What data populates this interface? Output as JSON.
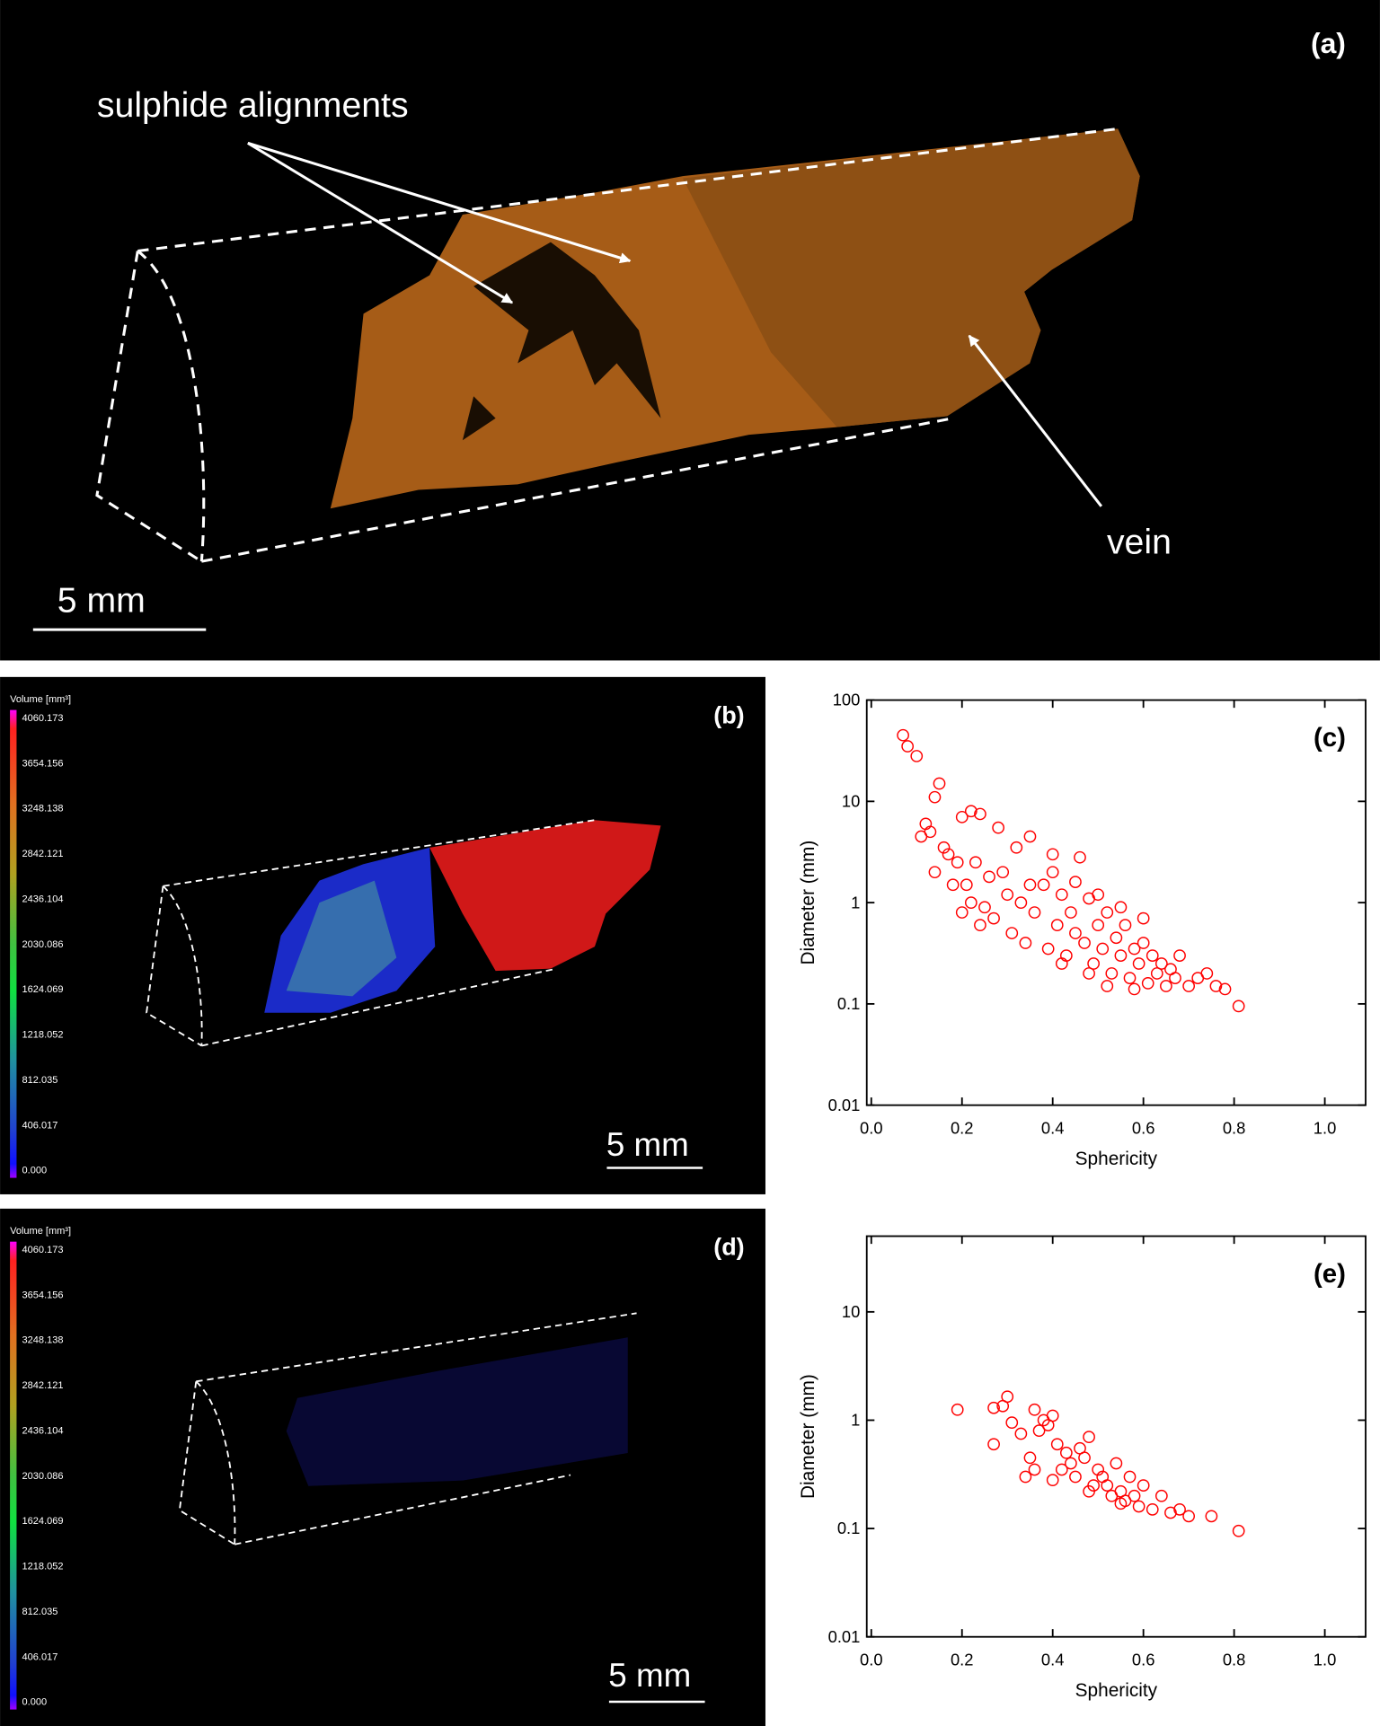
{
  "panels": {
    "a": {
      "label": "(a)",
      "annotation_alignments": "sulphide alignments",
      "annotation_vein": "vein",
      "scale": "5 mm"
    },
    "b": {
      "label": "(b)",
      "colorbar_title": "Volume [mm³]",
      "colorbar_labels": [
        "4060.173",
        "3654.156",
        "3248.138",
        "2842.121",
        "2436.104",
        "2030.086",
        "1624.069",
        "1218.052",
        "812.035",
        "406.017",
        "0.000"
      ],
      "scale": "5 mm"
    },
    "d": {
      "label": "(d)",
      "colorbar_title": "Volume [mm³]",
      "colorbar_labels": [
        "4060.173",
        "3654.156",
        "3248.138",
        "2842.121",
        "2436.104",
        "2030.086",
        "1624.069",
        "1218.052",
        "812.035",
        "406.017",
        "0.000"
      ],
      "scale": "5 mm"
    }
  },
  "chart_data": [
    {
      "type": "scatter",
      "panel_label": "(c)",
      "x_label": "Sphericity",
      "y_label": "Diameter (mm)",
      "yscale": "log",
      "color": "#ff0000",
      "marker": "open-circle",
      "xlim": [
        -0.01,
        1.09
      ],
      "ylim": [
        0.01,
        100
      ],
      "xticks": [
        {
          "value": 0,
          "label": "0.0"
        },
        0.2,
        0.4,
        0.6,
        0.8,
        {
          "value": 1,
          "label": "1.0"
        }
      ],
      "yticks": [
        0.01,
        0.1,
        1,
        10,
        100
      ],
      "x": [
        0.07,
        0.08,
        0.1,
        0.15,
        0.14,
        0.12,
        0.11,
        0.13,
        0.16,
        0.2,
        0.22,
        0.24,
        0.23,
        0.17,
        0.14,
        0.19,
        0.21,
        0.28,
        0.32,
        0.35,
        0.4,
        0.46,
        0.3,
        0.25,
        0.27,
        0.22,
        0.2,
        0.18,
        0.24,
        0.26,
        0.29,
        0.31,
        0.33,
        0.34,
        0.36,
        0.38,
        0.39,
        0.41,
        0.42,
        0.43,
        0.44,
        0.45,
        0.47,
        0.48,
        0.49,
        0.5,
        0.51,
        0.52,
        0.53,
        0.54,
        0.55,
        0.56,
        0.57,
        0.58,
        0.59,
        0.6,
        0.61,
        0.62,
        0.63,
        0.64,
        0.65,
        0.66,
        0.67,
        0.68,
        0.7,
        0.72,
        0.74,
        0.76,
        0.78,
        0.81,
        0.35,
        0.4,
        0.45,
        0.5,
        0.55,
        0.6,
        0.42,
        0.48,
        0.52,
        0.58
      ],
      "values": [
        45,
        35,
        28,
        15,
        11,
        6,
        4.5,
        5,
        3.5,
        7,
        8,
        7.5,
        2.5,
        3,
        2,
        2.5,
        1.5,
        5.5,
        3.5,
        4.5,
        3,
        2.8,
        1.2,
        0.9,
        0.7,
        1,
        0.8,
        1.5,
        0.6,
        1.8,
        2,
        0.5,
        1,
        0.4,
        0.8,
        1.5,
        0.35,
        0.6,
        1.2,
        0.3,
        0.8,
        0.5,
        0.4,
        1.1,
        0.25,
        0.6,
        0.35,
        0.8,
        0.2,
        0.45,
        0.3,
        0.6,
        0.18,
        0.35,
        0.25,
        0.4,
        0.16,
        0.3,
        0.2,
        0.25,
        0.15,
        0.22,
        0.18,
        0.3,
        0.15,
        0.18,
        0.2,
        0.15,
        0.14,
        0.095,
        1.5,
        2,
        1.6,
        1.2,
        0.9,
        0.7,
        0.25,
        0.2,
        0.15,
        0.14
      ]
    },
    {
      "type": "scatter",
      "panel_label": "(e)",
      "x_label": "Sphericity",
      "y_label": "Diameter (mm)",
      "yscale": "log",
      "color": "#ff0000",
      "marker": "open-circle",
      "xlim": [
        -0.01,
        1.09
      ],
      "ylim": [
        0.01,
        50
      ],
      "xticks": [
        {
          "value": 0,
          "label": "0.0"
        },
        0.2,
        0.4,
        0.6,
        0.8,
        {
          "value": 1,
          "label": "1.0"
        }
      ],
      "yticks": [
        0.01,
        0.1,
        1,
        10
      ],
      "x": [
        0.19,
        0.27,
        0.29,
        0.3,
        0.31,
        0.27,
        0.33,
        0.35,
        0.36,
        0.34,
        0.37,
        0.38,
        0.39,
        0.4,
        0.41,
        0.42,
        0.43,
        0.44,
        0.45,
        0.46,
        0.47,
        0.48,
        0.49,
        0.5,
        0.51,
        0.52,
        0.53,
        0.54,
        0.55,
        0.56,
        0.57,
        0.58,
        0.59,
        0.6,
        0.62,
        0.64,
        0.66,
        0.68,
        0.7,
        0.75,
        0.81,
        0.36,
        0.4,
        0.48,
        0.55
      ],
      "values": [
        1.25,
        1.3,
        1.35,
        1.65,
        0.95,
        0.6,
        0.75,
        0.45,
        1.25,
        0.3,
        0.8,
        1.0,
        0.9,
        1.1,
        0.6,
        0.35,
        0.5,
        0.4,
        0.3,
        0.55,
        0.45,
        0.7,
        0.25,
        0.35,
        0.3,
        0.25,
        0.2,
        0.4,
        0.22,
        0.18,
        0.3,
        0.2,
        0.16,
        0.25,
        0.15,
        0.2,
        0.14,
        0.15,
        0.13,
        0.13,
        0.095,
        0.35,
        0.28,
        0.22,
        0.17
      ]
    }
  ]
}
